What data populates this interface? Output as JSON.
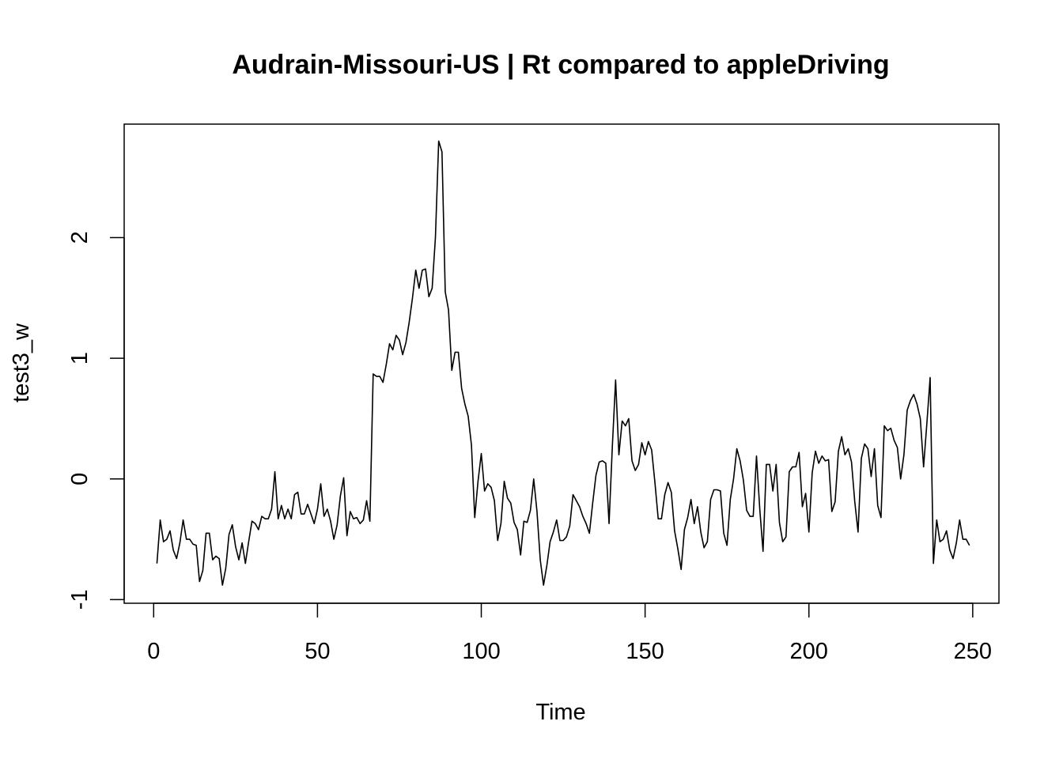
{
  "chart_data": {
    "type": "line",
    "title": "Audrain-Missouri-US | Rt compared to appleDriving",
    "xlabel": "Time",
    "ylabel": "test3_w",
    "xlim": [
      -9,
      258
    ],
    "ylim": [
      -1.03,
      2.94
    ],
    "x_ticks": [
      0,
      50,
      100,
      150,
      200,
      250
    ],
    "y_ticks": [
      -1,
      0,
      1,
      2
    ],
    "grid": false,
    "legend": "none",
    "line_color": "#000000",
    "series": [
      {
        "x_start": 1,
        "values": [
          -0.7,
          -0.34,
          -0.52,
          -0.5,
          -0.43,
          -0.59,
          -0.66,
          -0.53,
          -0.34,
          -0.5,
          -0.5,
          -0.54,
          -0.55,
          -0.85,
          -0.76,
          -0.45,
          -0.45,
          -0.67,
          -0.64,
          -0.66,
          -0.88,
          -0.74,
          -0.46,
          -0.38,
          -0.56,
          -0.67,
          -0.53,
          -0.7,
          -0.52,
          -0.35,
          -0.37,
          -0.42,
          -0.31,
          -0.33,
          -0.33,
          -0.25,
          0.06,
          -0.33,
          -0.22,
          -0.33,
          -0.25,
          -0.33,
          -0.13,
          -0.11,
          -0.29,
          -0.29,
          -0.21,
          -0.29,
          -0.37,
          -0.25,
          -0.04,
          -0.31,
          -0.25,
          -0.35,
          -0.5,
          -0.38,
          -0.14,
          0.01,
          -0.47,
          -0.27,
          -0.33,
          -0.32,
          -0.37,
          -0.34,
          -0.18,
          -0.35,
          0.87,
          0.85,
          0.85,
          0.8,
          0.95,
          1.12,
          1.07,
          1.19,
          1.15,
          1.03,
          1.13,
          1.3,
          1.5,
          1.73,
          1.58,
          1.73,
          1.74,
          1.51,
          1.58,
          2.0,
          2.8,
          2.71,
          1.55,
          1.4,
          0.9,
          1.05,
          1.05,
          0.75,
          0.62,
          0.52,
          0.28,
          -0.32,
          -0.02,
          0.21,
          -0.1,
          -0.04,
          -0.07,
          -0.18,
          -0.51,
          -0.37,
          -0.02,
          -0.16,
          -0.2,
          -0.36,
          -0.42,
          -0.63,
          -0.35,
          -0.36,
          -0.26,
          0.0,
          -0.27,
          -0.67,
          -0.88,
          -0.72,
          -0.52,
          -0.44,
          -0.34,
          -0.51,
          -0.51,
          -0.48,
          -0.39,
          -0.13,
          -0.18,
          -0.23,
          -0.31,
          -0.37,
          -0.45,
          -0.2,
          0.03,
          0.14,
          0.15,
          0.13,
          -0.37,
          0.27,
          0.82,
          0.2,
          0.48,
          0.44,
          0.5,
          0.15,
          0.07,
          0.12,
          0.3,
          0.2,
          0.31,
          0.24,
          -0.03,
          -0.33,
          -0.33,
          -0.13,
          -0.03,
          -0.11,
          -0.43,
          -0.58,
          -0.75,
          -0.42,
          -0.32,
          -0.17,
          -0.37,
          -0.23,
          -0.44,
          -0.57,
          -0.52,
          -0.17,
          -0.09,
          -0.09,
          -0.1,
          -0.45,
          -0.55,
          -0.17,
          0.0,
          0.25,
          0.15,
          -0.01,
          -0.26,
          -0.31,
          -0.31,
          0.19,
          -0.25,
          -0.6,
          0.12,
          0.12,
          -0.1,
          0.12,
          -0.36,
          -0.52,
          -0.48,
          0.06,
          0.1,
          0.1,
          0.22,
          -0.23,
          -0.12,
          -0.44,
          0.05,
          0.23,
          0.13,
          0.19,
          0.15,
          0.16,
          -0.27,
          -0.19,
          0.23,
          0.35,
          0.2,
          0.25,
          0.14,
          -0.19,
          -0.44,
          0.17,
          0.29,
          0.25,
          0.02,
          0.25,
          -0.22,
          -0.32,
          0.44,
          0.4,
          0.42,
          0.32,
          0.26,
          0.0,
          0.2,
          0.57,
          0.65,
          0.7,
          0.62,
          0.5,
          0.1,
          0.46,
          0.84,
          -0.7,
          -0.34,
          -0.52,
          -0.5,
          -0.43,
          -0.59,
          -0.66,
          -0.53,
          -0.34,
          -0.5,
          -0.5,
          -0.55
        ]
      }
    ]
  }
}
